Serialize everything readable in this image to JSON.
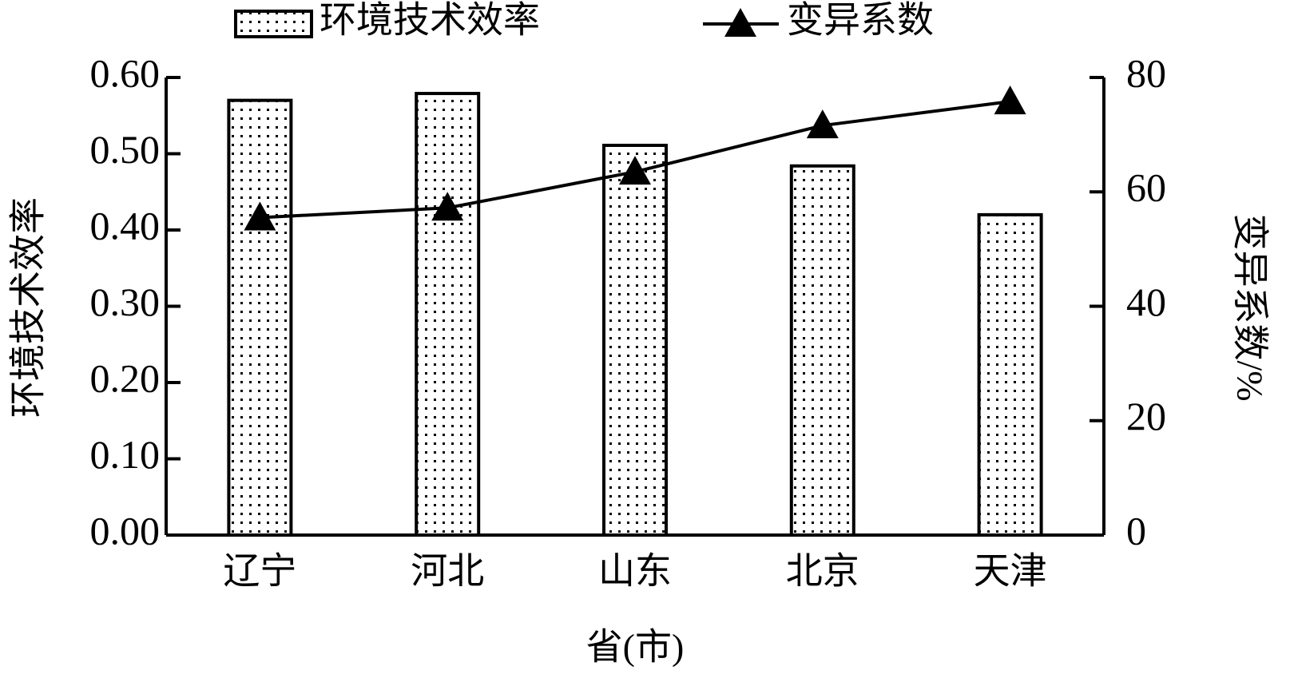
{
  "chart_data": {
    "type": "combo",
    "x_label": "省(市)",
    "y_label": "环境技术效率",
    "y2_label": "变异系数/%",
    "categories": [
      "辽宁",
      "河北",
      "山东",
      "北京",
      "天津"
    ],
    "series": [
      {
        "name": "环境技术效率",
        "type": "bar",
        "color": "#000000",
        "values": [
          0.57,
          0.579,
          0.511,
          0.484,
          0.42
        ]
      },
      {
        "name": "变异系数",
        "type": "line",
        "axis": "y2",
        "color": "#000000",
        "values": [
          55.5,
          57.2,
          63.5,
          71.6,
          75.8
        ]
      }
    ],
    "ylim": [
      0,
      0.6
    ],
    "yticks": [
      {
        "value": 0,
        "label": "0.00"
      },
      {
        "value": 0.1,
        "label": "0.10"
      },
      {
        "value": 0.2,
        "label": "0.20"
      },
      {
        "value": 0.3,
        "label": "0.30"
      },
      {
        "value": 0.4,
        "label": "0.40"
      },
      {
        "value": 0.5,
        "label": "0.50"
      },
      {
        "value": 0.6,
        "label": "0.60"
      }
    ],
    "y2lim": [
      0,
      80
    ],
    "y2ticks": [
      0,
      20,
      40,
      60,
      80
    ],
    "legend": "top"
  }
}
